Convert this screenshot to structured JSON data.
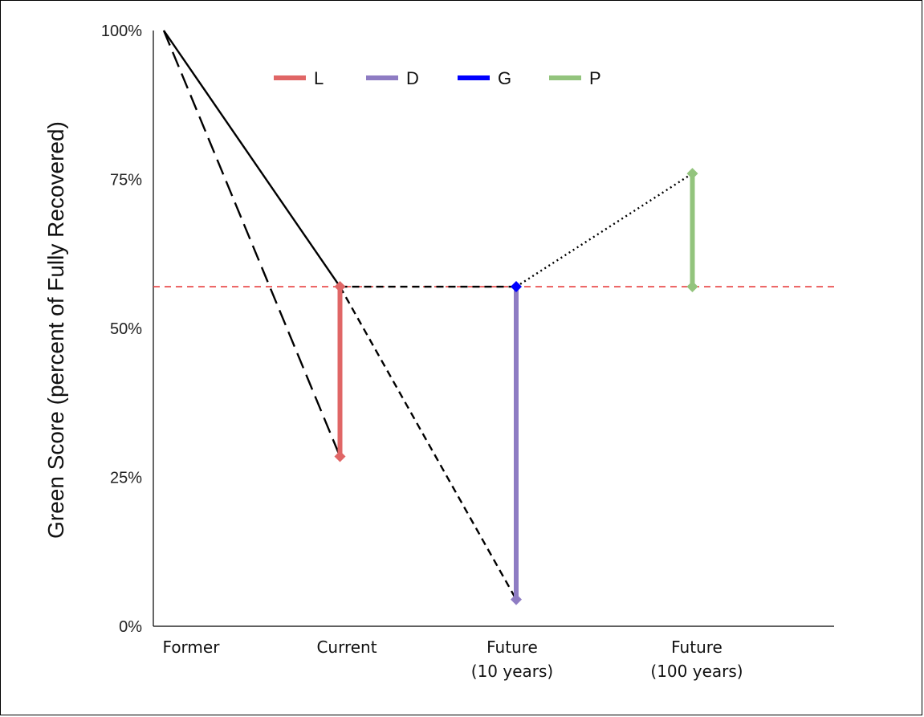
{
  "chart_data": {
    "type": "line",
    "title": "",
    "ylabel": "Green Score (percent of Fully Recovered)",
    "xlabel": "",
    "x_categories": [
      {
        "lines": [
          "Former"
        ]
      },
      {
        "lines": [
          "Current"
        ]
      },
      {
        "lines": [
          "Future",
          "(10 years)"
        ]
      },
      {
        "lines": [
          "Future",
          "(100 years)"
        ]
      }
    ],
    "x_range": [
      0,
      3.75
    ],
    "y_ticks": [
      {
        "value": 0,
        "label": "0%"
      },
      {
        "value": 25,
        "label": "25%"
      },
      {
        "value": 50,
        "label": "50%"
      },
      {
        "value": 75,
        "label": "75%"
      },
      {
        "value": 100,
        "label": "100%"
      }
    ],
    "ylim": [
      0,
      100
    ],
    "legend_position": "top",
    "legend": [
      {
        "label": "L",
        "color": "#e06666"
      },
      {
        "label": "D",
        "color": "#8e7cc3"
      },
      {
        "label": "G",
        "color": "#0000ff"
      },
      {
        "label": "P",
        "color": "#93c47d"
      }
    ],
    "trend_lines": [
      {
        "style": "solid",
        "points": [
          [
            0,
            100
          ],
          [
            1,
            57
          ]
        ]
      },
      {
        "style": "long-dash",
        "points": [
          [
            0,
            100
          ],
          [
            1,
            28.5
          ]
        ]
      },
      {
        "style": "dash",
        "points": [
          [
            1,
            57
          ],
          [
            2,
            57
          ]
        ]
      },
      {
        "style": "dash",
        "points": [
          [
            1,
            57
          ],
          [
            2,
            4.5
          ]
        ]
      },
      {
        "style": "dotted",
        "points": [
          [
            2,
            57
          ],
          [
            3,
            76
          ]
        ]
      }
    ],
    "reference_line": {
      "value": 57,
      "color": "#e84040",
      "style": "dash"
    },
    "range_bars": [
      {
        "label": "L",
        "x": 1,
        "from": 28.5,
        "to": 57,
        "color": "#e06666"
      },
      {
        "label": "D",
        "x": 2,
        "from": 4.5,
        "to": 57,
        "color": "#8e7cc3"
      },
      {
        "label": "P",
        "x": 3,
        "from": 57,
        "to": 76,
        "color": "#93c47d"
      }
    ],
    "markers": [
      {
        "x": 1,
        "y": 57,
        "color": "#e06666"
      },
      {
        "x": 1,
        "y": 28.5,
        "color": "#e06666"
      },
      {
        "x": 2,
        "y": 4.5,
        "color": "#8e7cc3"
      },
      {
        "x": 2,
        "y": 57,
        "color": "#0000ff"
      },
      {
        "x": 3,
        "y": 57,
        "color": "#93c47d"
      },
      {
        "x": 3,
        "y": 76,
        "color": "#93c47d"
      }
    ],
    "grid": false
  }
}
